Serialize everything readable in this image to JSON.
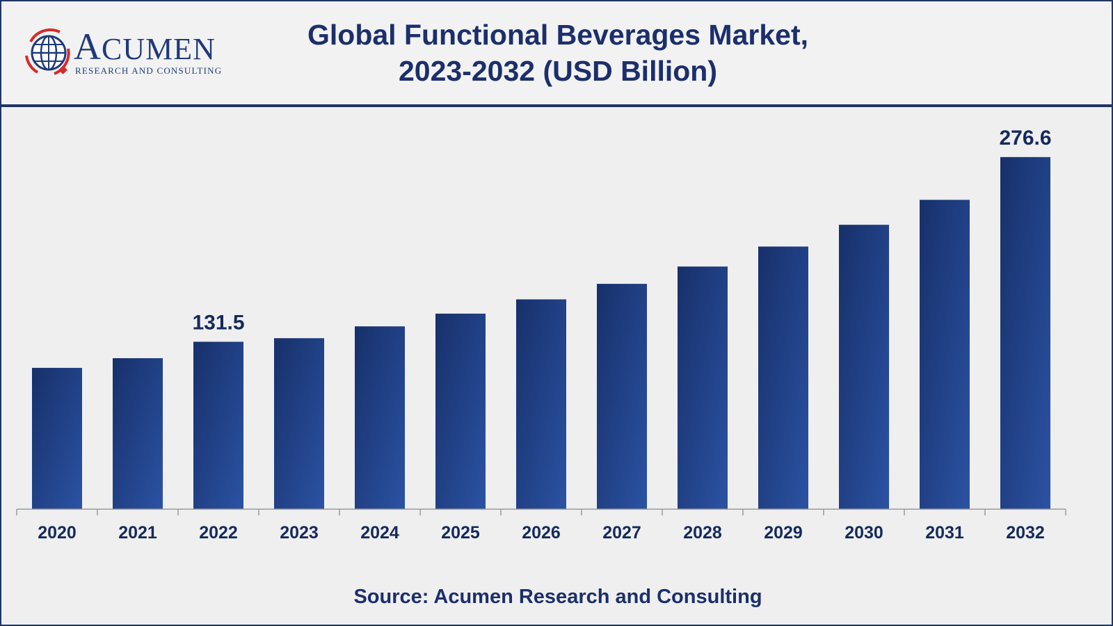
{
  "title_line1": "Global Functional Beverages Market,",
  "title_line2": "2023-2032 (USD Billion)",
  "logo": {
    "name": "Acumen",
    "tagline": "Research and Consulting"
  },
  "source": "Source: Acumen Research and Consulting",
  "colors": {
    "bar_dark": "#17306a",
    "bar_light": "#2b52a3",
    "text": "#1b2f6b"
  },
  "chart_data": {
    "type": "bar",
    "title": "Global Functional Beverages Market, 2023-2032 (USD Billion)",
    "xlabel": "",
    "ylabel": "",
    "categories": [
      "2020",
      "2021",
      "2022",
      "2023",
      "2024",
      "2025",
      "2026",
      "2027",
      "2028",
      "2029",
      "2030",
      "2031",
      "2032"
    ],
    "values": [
      111.0,
      118.6,
      131.5,
      134.3,
      143.6,
      153.6,
      164.8,
      177.0,
      190.6,
      206.3,
      223.4,
      243.0,
      276.6
    ],
    "data_labels": [
      {
        "index": 2,
        "text": "131.5"
      },
      {
        "index": 12,
        "text": "276.6"
      }
    ],
    "ylim": [
      0,
      300
    ],
    "grid": false,
    "legend": "none"
  }
}
